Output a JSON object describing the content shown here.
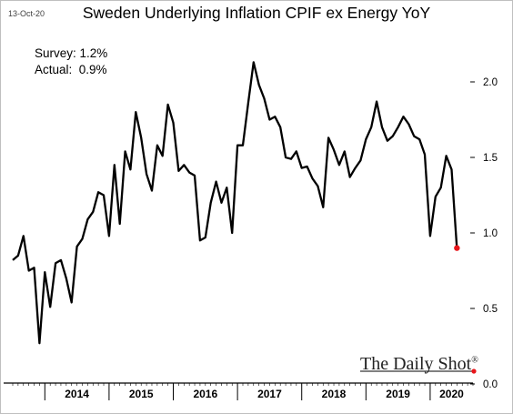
{
  "date_stamp": "13-Oct-20",
  "annotations": {
    "survey": "Survey: 1.2%",
    "actual": "Actual:  0.9%"
  },
  "brand": {
    "name": "The Daily Shot",
    "mark": "®"
  },
  "colors": {
    "line": "#000000",
    "highlight": "#e8161b",
    "axis": "#000000"
  },
  "chart_data": {
    "type": "line",
    "title": "Sweden Underlying Inflation CPIF ex Energy YoY",
    "xlabel": "",
    "ylabel": "",
    "ylim": [
      0,
      2.2
    ],
    "yticks": [
      0.0,
      0.5,
      1.0,
      1.5,
      2.0
    ],
    "ytick_labels": [
      "0.0",
      "0.5",
      "1.0",
      "1.5",
      "2.0"
    ],
    "year_labels": [
      "2014",
      "2015",
      "2016",
      "2017",
      "2018",
      "2019",
      "2020"
    ],
    "x_start": "2013-07",
    "x_end": "2020-09",
    "series": [
      {
        "values": [
          0.82,
          0.85,
          0.98,
          0.75,
          0.77,
          0.27,
          0.74,
          0.51,
          0.8,
          0.82,
          0.7,
          0.54,
          0.91,
          0.96,
          1.09,
          1.14,
          1.27,
          1.25,
          0.98,
          1.45,
          1.06,
          1.54,
          1.42,
          1.8,
          1.63,
          1.39,
          1.28,
          1.58,
          1.51,
          1.85,
          1.73,
          1.41,
          1.45,
          1.4,
          1.38,
          0.95,
          0.97,
          1.2,
          1.34,
          1.2,
          1.3,
          1.0,
          1.58,
          1.58,
          1.86,
          2.13,
          1.98,
          1.89,
          1.75,
          1.77,
          1.7,
          1.5,
          1.49,
          1.54,
          1.43,
          1.44,
          1.36,
          1.31,
          1.17,
          1.63,
          1.55,
          1.45,
          1.54,
          1.37,
          1.43,
          1.48,
          1.62,
          1.7,
          1.87,
          1.7,
          1.61,
          1.64,
          1.7,
          1.77,
          1.72,
          1.64,
          1.62,
          1.52,
          0.98,
          1.24,
          1.3,
          1.51,
          1.42,
          0.9
        ],
        "last_value": 0.9
      }
    ],
    "grid": false,
    "legend": "none"
  }
}
